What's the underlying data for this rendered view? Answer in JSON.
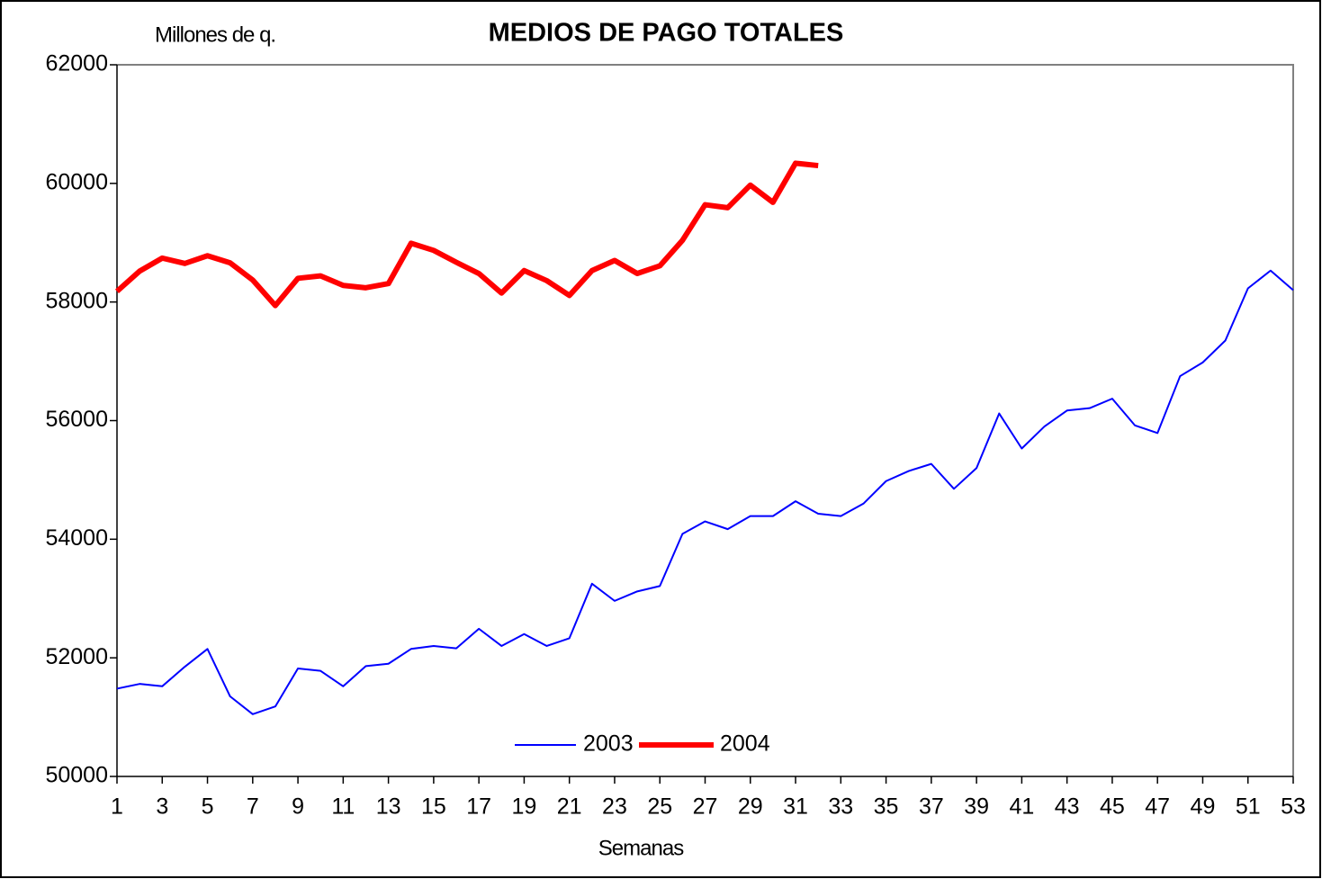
{
  "chart_data": {
    "type": "line",
    "title": "MEDIOS DE PAGO TOTALES",
    "y_label": "Millones de q.",
    "x_label": "Semanas",
    "x": [
      1,
      2,
      3,
      4,
      5,
      6,
      7,
      8,
      9,
      10,
      11,
      12,
      13,
      14,
      15,
      16,
      17,
      18,
      19,
      20,
      21,
      22,
      23,
      24,
      25,
      26,
      27,
      28,
      29,
      30,
      31,
      32,
      33,
      34,
      35,
      36,
      37,
      38,
      39,
      40,
      41,
      42,
      43,
      44,
      45,
      46,
      47,
      48,
      49,
      50,
      51,
      52,
      53
    ],
    "xlim": [
      1,
      53
    ],
    "xticks": [
      1,
      3,
      5,
      7,
      9,
      11,
      13,
      15,
      17,
      19,
      21,
      23,
      25,
      27,
      29,
      31,
      33,
      35,
      37,
      39,
      41,
      43,
      45,
      47,
      49,
      51,
      53
    ],
    "ylim": [
      50000,
      62000
    ],
    "yticks": [
      50000,
      52000,
      54000,
      56000,
      58000,
      60000,
      62000
    ],
    "grid": false,
    "legend": "bottom",
    "series": [
      {
        "name": "2003",
        "color": "#0000ff",
        "width": 2,
        "values": [
          51480,
          51560,
          51520,
          51850,
          52150,
          51350,
          51050,
          51180,
          51820,
          51780,
          51520,
          51860,
          51900,
          52150,
          52200,
          52160,
          52490,
          52200,
          52400,
          52200,
          52330,
          53250,
          52960,
          53120,
          53210,
          54090,
          54300,
          54170,
          54390,
          54390,
          54640,
          54430,
          54390,
          54600,
          54980,
          55150,
          55270,
          54850,
          55200,
          56120,
          55530,
          55900,
          56170,
          56210,
          56370,
          55920,
          55790,
          56750,
          56980,
          57350,
          58230,
          58530,
          58200
        ]
      },
      {
        "name": "2004",
        "color": "#ff0000",
        "width": 6,
        "values": [
          58180,
          58520,
          58740,
          58650,
          58780,
          58660,
          58370,
          57940,
          58400,
          58440,
          58280,
          58240,
          58310,
          58990,
          58870,
          58670,
          58480,
          58150,
          58530,
          58360,
          58110,
          58530,
          58700,
          58480,
          58610,
          59040,
          59640,
          59590,
          59970,
          59680,
          60340,
          60300,
          null,
          null,
          null,
          null,
          null,
          null,
          null,
          null,
          null,
          null,
          null,
          null,
          null,
          null,
          null,
          null,
          null,
          null,
          null,
          null,
          null
        ]
      }
    ]
  }
}
